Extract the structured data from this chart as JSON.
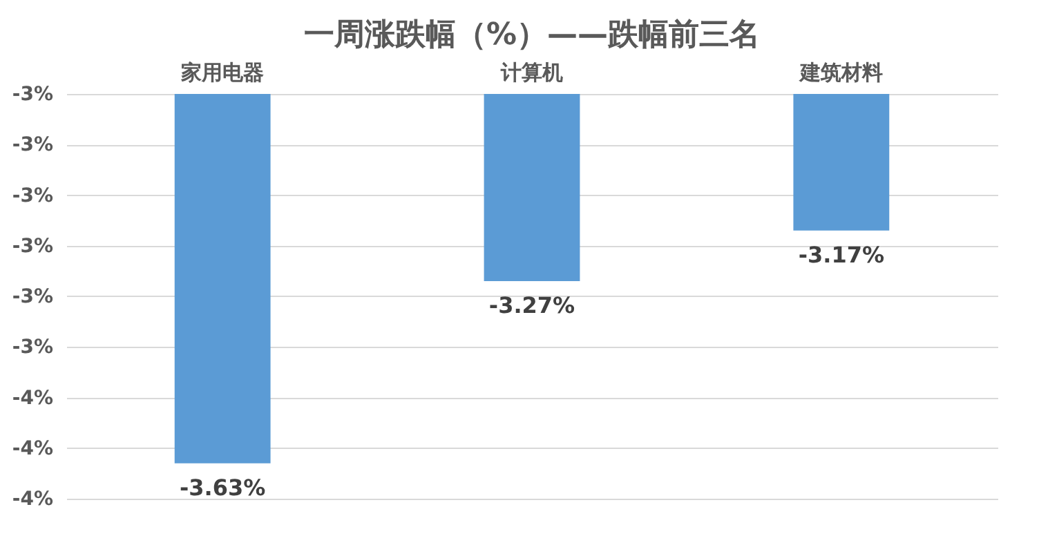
{
  "chart_data": {
    "type": "bar",
    "title": "一周涨跌幅（%）——跌幅前三名",
    "categories": [
      "家用电器",
      "计算机",
      "建筑材料"
    ],
    "values": [
      -3.63,
      -3.27,
      -3.17
    ],
    "color": "#5b9bd5",
    "value_labels": [
      "-3.63%",
      "-3.27%",
      "-3.17%"
    ],
    "ylim": [
      -3.7,
      -2.9
    ],
    "yticks": [
      {
        "value": -2.9,
        "label": "-3%"
      },
      {
        "value": -3.0,
        "label": "-3%"
      },
      {
        "value": -3.1,
        "label": "-3%"
      },
      {
        "value": -3.2,
        "label": "-3%"
      },
      {
        "value": -3.3,
        "label": "-3%"
      },
      {
        "value": -3.4,
        "label": "-3%"
      },
      {
        "value": -3.5,
        "label": "-4%"
      },
      {
        "value": -3.6,
        "label": "-4%"
      },
      {
        "value": -3.7,
        "label": "-4%"
      }
    ],
    "grid": "y"
  }
}
